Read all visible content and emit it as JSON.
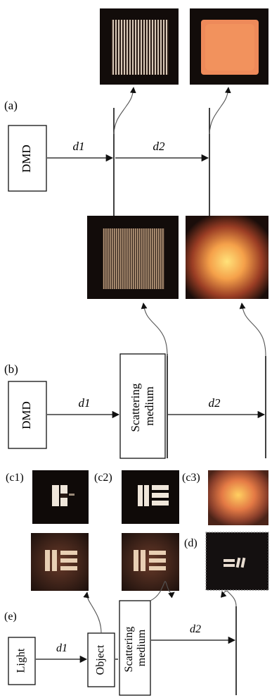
{
  "panels": {
    "a": {
      "label": "(a)",
      "source_box": "DMD",
      "distance_1": "d1",
      "distance_2": "d2"
    },
    "b": {
      "label": "(b)",
      "source_box": "DMD",
      "medium_box": [
        "Scattering",
        "medium"
      ],
      "distance_1": "d1",
      "distance_2": "d2"
    },
    "c1": {
      "label": "(c1)"
    },
    "c2": {
      "label": "(c2)"
    },
    "c3": {
      "label": "(c3)"
    },
    "d": {
      "label": "(d)"
    },
    "e": {
      "label": "(e)",
      "light_box": "Light",
      "object_box": "Object",
      "medium_box": [
        "Scattering",
        "medium"
      ],
      "distance_1": "d1",
      "distance_2": "d2"
    }
  },
  "colors": {
    "line": "#111111",
    "tile_background": "#1a1210",
    "glow_warm": "#f08a4a",
    "glow_core": "#ffd070",
    "stripe_light": "#c8b4a0",
    "dashed_border": "#8a8a8a"
  }
}
